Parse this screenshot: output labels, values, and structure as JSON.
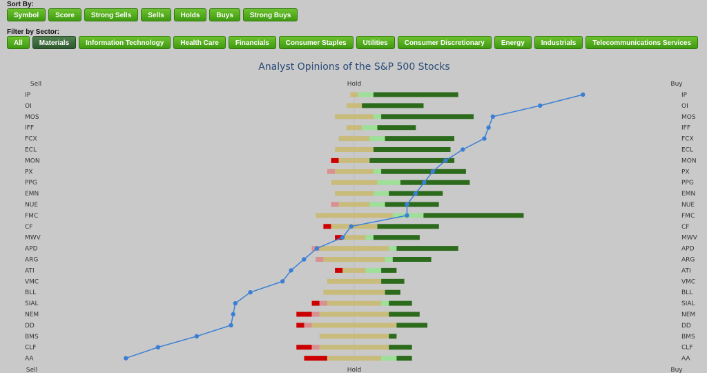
{
  "sort": {
    "label": "Sort By:",
    "buttons": [
      "Symbol",
      "Score",
      "Strong Sells",
      "Sells",
      "Holds",
      "Buys",
      "Strong Buys"
    ]
  },
  "filter": {
    "label": "Filter by Sector:",
    "buttons": [
      "All",
      "Materials",
      "Information Technology",
      "Health Care",
      "Financials",
      "Consumer Staples",
      "Utilities",
      "Consumer Discretionary",
      "Energy",
      "Industrials",
      "Telecommunications Services"
    ],
    "active": "Materials"
  },
  "colors": {
    "strong_sell": "#cc0000",
    "sell": "#d99090",
    "hold": "#c9bb7a",
    "buy": "#9edf9a",
    "strong_buy": "#2d6b1c",
    "score_line": "#3a7fd5"
  },
  "chart_data": {
    "type": "bar",
    "title": "Analyst Opinions of the S&P 500 Stocks",
    "axis_labels": {
      "left": "Sell",
      "center": "Hold",
      "right": "Buy"
    },
    "segments": [
      "Strong Sell",
      "Sell",
      "Hold",
      "Buy",
      "Strong Buy"
    ],
    "categories": [
      "IP",
      "OI",
      "MOS",
      "IFF",
      "FCX",
      "ECL",
      "MON",
      "PX",
      "PPG",
      "EMN",
      "NUE",
      "FMC",
      "CF",
      "MWV",
      "APD",
      "ARG",
      "ATI",
      "VMC",
      "BLL",
      "SIAL",
      "NEM",
      "DD",
      "BMS",
      "CLF",
      "AA"
    ],
    "series": [
      {
        "name": "Strong Sell",
        "values": [
          0,
          0,
          0,
          0,
          0,
          0,
          2,
          0,
          0,
          0,
          0,
          0,
          2,
          2,
          0,
          0,
          2,
          0,
          0,
          2,
          4,
          2,
          0,
          4,
          6
        ]
      },
      {
        "name": "Sell",
        "values": [
          0,
          0,
          0,
          0,
          0,
          0,
          0,
          2,
          0,
          0,
          2,
          0,
          0,
          0,
          2,
          2,
          0,
          0,
          0,
          2,
          2,
          2,
          0,
          2,
          0
        ]
      },
      {
        "name": "Hold",
        "values": [
          2,
          4,
          10,
          4,
          8,
          10,
          8,
          10,
          12,
          10,
          8,
          20,
          12,
          6,
          18,
          16,
          6,
          14,
          16,
          14,
          18,
          22,
          18,
          18,
          14
        ]
      },
      {
        "name": "Buy",
        "values": [
          4,
          0,
          2,
          4,
          4,
          0,
          0,
          2,
          6,
          4,
          4,
          8,
          0,
          2,
          2,
          2,
          4,
          0,
          0,
          2,
          0,
          0,
          0,
          0,
          4
        ]
      },
      {
        "name": "Strong Buy",
        "values": [
          22,
          16,
          24,
          10,
          18,
          20,
          22,
          22,
          18,
          14,
          14,
          26,
          16,
          12,
          16,
          10,
          4,
          6,
          4,
          6,
          8,
          8,
          2,
          6,
          4
        ]
      }
    ],
    "scores": [
      3.53,
      3.33,
      3.11,
      3.09,
      3.07,
      2.97,
      2.89,
      2.83,
      2.79,
      2.75,
      2.71,
      2.71,
      2.45,
      2.41,
      2.29,
      2.23,
      2.17,
      2.13,
      1.98,
      1.91,
      1.9,
      1.89,
      1.73,
      1.55,
      1.4
    ]
  }
}
